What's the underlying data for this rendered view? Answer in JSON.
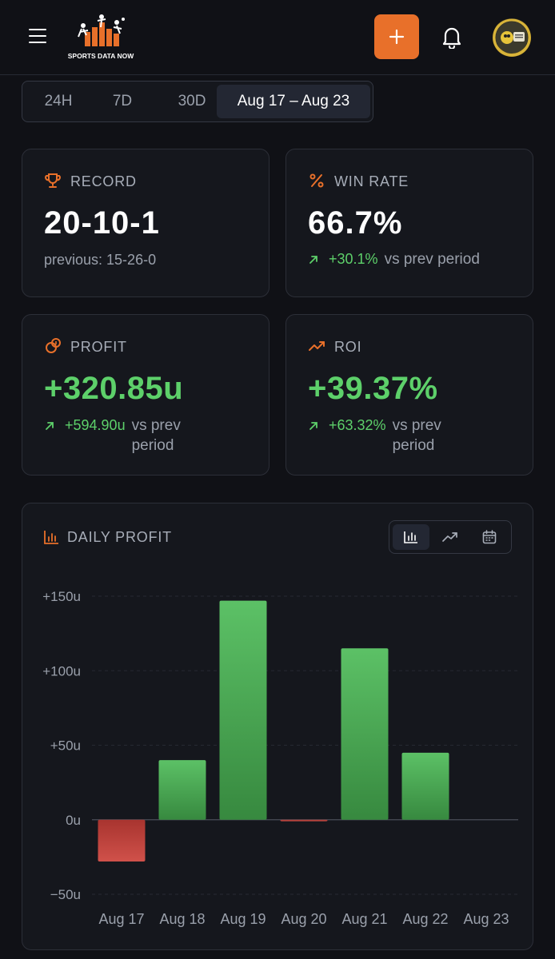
{
  "header": {
    "logo_text": "SPORTS DATA NOW",
    "add_label": "+",
    "avatar_label": "AVATAR"
  },
  "period_tabs": [
    {
      "label": "24H",
      "active": false
    },
    {
      "label": "7D",
      "active": false
    },
    {
      "label": "30D",
      "active": false
    },
    {
      "label": "Aug 17 – Aug 23",
      "active": true
    }
  ],
  "stats": {
    "record": {
      "label": "RECORD",
      "value": "20-10-1",
      "previous": "previous: 15-26-0"
    },
    "win_rate": {
      "label": "WIN RATE",
      "value": "66.7%",
      "delta": "+30.1%",
      "delta_text": "vs prev period"
    },
    "profit": {
      "label": "PROFIT",
      "value": "+320.85u",
      "delta": "+594.90u",
      "delta_text": "vs prev period"
    },
    "roi": {
      "label": "ROI",
      "value": "+39.37%",
      "delta": "+63.32%",
      "delta_text": "vs prev period"
    }
  },
  "colors": {
    "accent": "#e8702a",
    "positive": "#5dd06a",
    "negative": "#c8463f",
    "background": "#101116",
    "card": "#15171d"
  },
  "chart_data": {
    "type": "bar",
    "title": "DAILY PROFIT",
    "categories": [
      "Aug 17",
      "Aug 18",
      "Aug 19",
      "Aug 20",
      "Aug 21",
      "Aug 22",
      "Aug 23"
    ],
    "values": [
      -28,
      40,
      147,
      -1,
      115,
      45,
      0
    ],
    "ylim": [
      -50,
      150
    ],
    "yticks": [
      150,
      100,
      50,
      0,
      -50
    ],
    "ytick_labels": [
      "+150u",
      "+100u",
      "+50u",
      "0u",
      "−50u"
    ],
    "grid": true,
    "legend": "none"
  },
  "chart_view_options": [
    {
      "icon": "bar-chart-icon",
      "active": true
    },
    {
      "icon": "trend-line-icon",
      "active": false
    },
    {
      "icon": "calendar-icon",
      "active": false
    }
  ]
}
